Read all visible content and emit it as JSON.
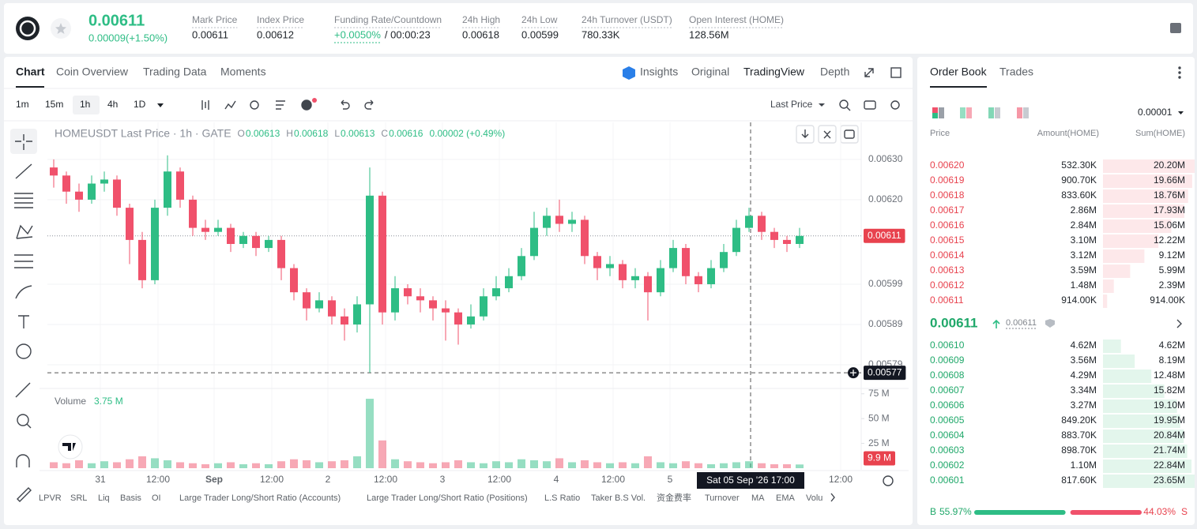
{
  "header": {
    "price": "0.00611",
    "change": "0.00009(+1.50%)",
    "stats": [
      {
        "label": "Mark Price",
        "value": "0.00611"
      },
      {
        "label": "Index Price",
        "value": "0.00612"
      },
      {
        "label": "Funding Rate/Countdown",
        "value": "+0.0050%",
        "countdown": "/ 00:00:23"
      },
      {
        "label": "24h High",
        "value": "0.00618"
      },
      {
        "label": "24h Low",
        "value": "0.00599"
      },
      {
        "label": "24h Turnover (USDT)",
        "value": "780.33K"
      },
      {
        "label": "Open Interest (HOME)",
        "value": "128.56M"
      }
    ]
  },
  "tabs": [
    "Chart",
    "Coin Overview",
    "Trading Data",
    "Moments"
  ],
  "view_tabs": [
    "Insights",
    "Original",
    "TradingView",
    "Depth"
  ],
  "intervals": [
    "1m",
    "15m",
    "1h",
    "4h",
    "1D"
  ],
  "price_type": "Last Price",
  "chart_data": {
    "type": "candlestick",
    "title": "HOMEUSDT Last Price · 1h · GATE",
    "ohlc_legend": [
      {
        "key": "O",
        "value": "0.00613"
      },
      {
        "key": "H",
        "value": "0.00618"
      },
      {
        "key": "L",
        "value": "0.00613"
      },
      {
        "key": "C",
        "value": "0.00616"
      }
    ],
    "change": "0.00002 (+0.49%)",
    "up_color": "#2ebd85",
    "down_color": "#f0516b",
    "open": [
      0.00628,
      0.00626,
      0.00622,
      0.0062,
      0.00624,
      0.00625,
      0.00618,
      0.0061,
      0.006,
      0.00618,
      0.00627,
      0.0062,
      0.00613,
      0.00612,
      0.00613,
      0.00609,
      0.00611,
      0.00608,
      0.0061,
      0.00603,
      0.00597,
      0.00593,
      0.00595,
      0.00591,
      0.00589,
      0.00594,
      0.00621,
      0.00592,
      0.00598,
      0.00596,
      0.00595,
      0.00593,
      0.00592,
      0.00589,
      0.00591,
      0.00596,
      0.00598,
      0.00601,
      0.00606,
      0.00613,
      0.00616,
      0.00614,
      0.00615,
      0.00606,
      0.00603,
      0.00604,
      0.006,
      0.00601,
      0.00597,
      0.00603,
      0.00608,
      0.00601,
      0.00599,
      0.00603,
      0.00607,
      0.00613,
      0.00616,
      0.00612,
      0.0061,
      0.00609
    ],
    "high": [
      0.0063,
      0.00627,
      0.00624,
      0.00626,
      0.00627,
      0.00626,
      0.00619,
      0.00612,
      0.0062,
      0.00631,
      0.00628,
      0.00621,
      0.00615,
      0.00615,
      0.00614,
      0.00612,
      0.00612,
      0.00611,
      0.00611,
      0.00604,
      0.00598,
      0.00597,
      0.00596,
      0.00593,
      0.00596,
      0.00628,
      0.00622,
      0.00601,
      0.00599,
      0.00598,
      0.00596,
      0.00595,
      0.00593,
      0.00594,
      0.00598,
      0.00601,
      0.00603,
      0.00608,
      0.00617,
      0.00618,
      0.0062,
      0.00617,
      0.00616,
      0.00607,
      0.00606,
      0.00605,
      0.00603,
      0.00602,
      0.00605,
      0.0061,
      0.00609,
      0.00602,
      0.00605,
      0.00609,
      0.00615,
      0.00618,
      0.00617,
      0.00613,
      0.00611,
      0.00613
    ],
    "low": [
      0.00623,
      0.00619,
      0.00617,
      0.00619,
      0.00622,
      0.00616,
      0.00604,
      0.00598,
      0.00599,
      0.00616,
      0.00618,
      0.00611,
      0.0061,
      0.00611,
      0.00607,
      0.00608,
      0.00606,
      0.00607,
      0.006,
      0.00595,
      0.0059,
      0.00592,
      0.00589,
      0.00585,
      0.00587,
      0.00577,
      0.00589,
      0.0059,
      0.00594,
      0.00592,
      0.0059,
      0.00585,
      0.00584,
      0.00588,
      0.0059,
      0.00595,
      0.00597,
      0.006,
      0.00605,
      0.00611,
      0.00612,
      0.00612,
      0.00604,
      0.006,
      0.00601,
      0.00598,
      0.00598,
      0.0059,
      0.00596,
      0.00602,
      0.00599,
      0.00597,
      0.00598,
      0.00602,
      0.00606,
      0.00612,
      0.0061,
      0.00608,
      0.00607,
      0.00608
    ],
    "close": [
      0.00626,
      0.00622,
      0.0062,
      0.00624,
      0.00625,
      0.00618,
      0.0061,
      0.006,
      0.00618,
      0.00627,
      0.0062,
      0.00613,
      0.00612,
      0.00613,
      0.00609,
      0.00611,
      0.00608,
      0.0061,
      0.00603,
      0.00597,
      0.00593,
      0.00595,
      0.00591,
      0.00589,
      0.00594,
      0.00621,
      0.00592,
      0.00598,
      0.00596,
      0.00595,
      0.00593,
      0.00592,
      0.00589,
      0.00591,
      0.00596,
      0.00598,
      0.00601,
      0.00606,
      0.00613,
      0.00616,
      0.00614,
      0.00615,
      0.00606,
      0.00603,
      0.00604,
      0.006,
      0.00601,
      0.00597,
      0.00603,
      0.00608,
      0.00601,
      0.00599,
      0.00603,
      0.00607,
      0.00613,
      0.00616,
      0.00612,
      0.0061,
      0.00609,
      0.00611
    ],
    "ylim": [
      0.005735,
      0.006392
    ],
    "yticks": [
      {
        "value": 0.0063,
        "label": "0.00630"
      },
      {
        "value": 0.0062,
        "label": "0.00620"
      },
      {
        "value": 0.00599,
        "label": "0.00599"
      },
      {
        "value": 0.00589,
        "label": "0.00589"
      },
      {
        "value": 0.00579,
        "label": "0.00579"
      }
    ],
    "last_price": {
      "value": 0.00611,
      "label": "0.00611"
    },
    "crosshair_price": {
      "value": 0.00577,
      "label": "0.00577"
    },
    "crosshair_time": "Sat 05 Sep '26   17:00",
    "xticks": [
      "31",
      "12:00",
      "Sep",
      "12:00",
      "2",
      "12:00",
      "3",
      "12:00",
      "4",
      "12:00",
      "5",
      "12:00"
    ],
    "volume": {
      "title": "Volume",
      "current": "3.75 M",
      "values": [
        6,
        5,
        8,
        5,
        7,
        6,
        9,
        12,
        10,
        8,
        6,
        5,
        4,
        5,
        6,
        4,
        5,
        4,
        7,
        9,
        8,
        6,
        7,
        8,
        12,
        70,
        28,
        9,
        7,
        6,
        5,
        6,
        8,
        6,
        5,
        7,
        6,
        9,
        8,
        7,
        10,
        6,
        8,
        6,
        5,
        6,
        5,
        12,
        6,
        5,
        7,
        5,
        4,
        5,
        6,
        7,
        5,
        4,
        4,
        3.75
      ],
      "ylim": [
        0,
        78
      ],
      "yticks": [
        {
          "value": 25,
          "label": "25 M"
        },
        {
          "value": 50,
          "label": "50 M"
        },
        {
          "value": 75,
          "label": "75 M"
        }
      ],
      "marker": {
        "value": 9.9,
        "label": "9.9 M"
      }
    }
  },
  "indicators": [
    "LPVR",
    "SRL",
    "Liq",
    "Basis",
    "OI",
    "Large Trader Long/Short Ratio (Accounts)",
    "Large Trader Long/Short Ratio (Positions)",
    "L.S Ratio",
    "Taker B.S Vol.",
    "资金费率",
    "Turnover",
    "MA",
    "EMA",
    "Volu"
  ],
  "order_book": {
    "tabs": [
      "Order Book",
      "Trades"
    ],
    "precision": "0.00001",
    "columns": [
      "Price",
      "Amount(HOME)",
      "Sum(HOME)"
    ],
    "asks": {
      "prices": [
        "0.00620",
        "0.00619",
        "0.00618",
        "0.00617",
        "0.00616",
        "0.00615",
        "0.00614",
        "0.00613",
        "0.00612",
        "0.00611"
      ],
      "amounts": [
        "532.30K",
        "900.70K",
        "833.60K",
        "2.86M",
        "2.84M",
        "3.10M",
        "3.12M",
        "3.59M",
        "1.48M",
        "914.00K"
      ],
      "sums": [
        20.2,
        19.66,
        18.76,
        17.93,
        15.06,
        12.22,
        9.12,
        5.99,
        2.39,
        0.914
      ],
      "sum_labels": [
        "20.20M",
        "19.66M",
        "18.76M",
        "17.93M",
        "15.06M",
        "12.22M",
        "9.12M",
        "5.99M",
        "2.39M",
        "914.00K"
      ]
    },
    "mid_price": "0.00611",
    "mark_price": "0.00611",
    "bids": {
      "prices": [
        "0.00610",
        "0.00609",
        "0.00608",
        "0.00607",
        "0.00606",
        "0.00605",
        "0.00604",
        "0.00603",
        "0.00602",
        "0.00601"
      ],
      "amounts": [
        "4.62M",
        "3.56M",
        "4.29M",
        "3.34M",
        "3.27M",
        "849.20K",
        "883.70K",
        "898.70K",
        "1.10M",
        "817.60K"
      ],
      "sums": [
        4.62,
        8.19,
        12.48,
        15.82,
        19.1,
        19.95,
        20.84,
        21.74,
        22.84,
        23.65
      ],
      "sum_labels": [
        "4.62M",
        "8.19M",
        "12.48M",
        "15.82M",
        "19.10M",
        "19.95M",
        "20.84M",
        "21.74M",
        "22.84M",
        "23.65M"
      ]
    },
    "buy_key": "B",
    "sell_key": "S",
    "buy": {
      "value": 55.97,
      "label": "55.97%"
    },
    "sell": {
      "value": 44.03,
      "label": "44.03%"
    }
  }
}
